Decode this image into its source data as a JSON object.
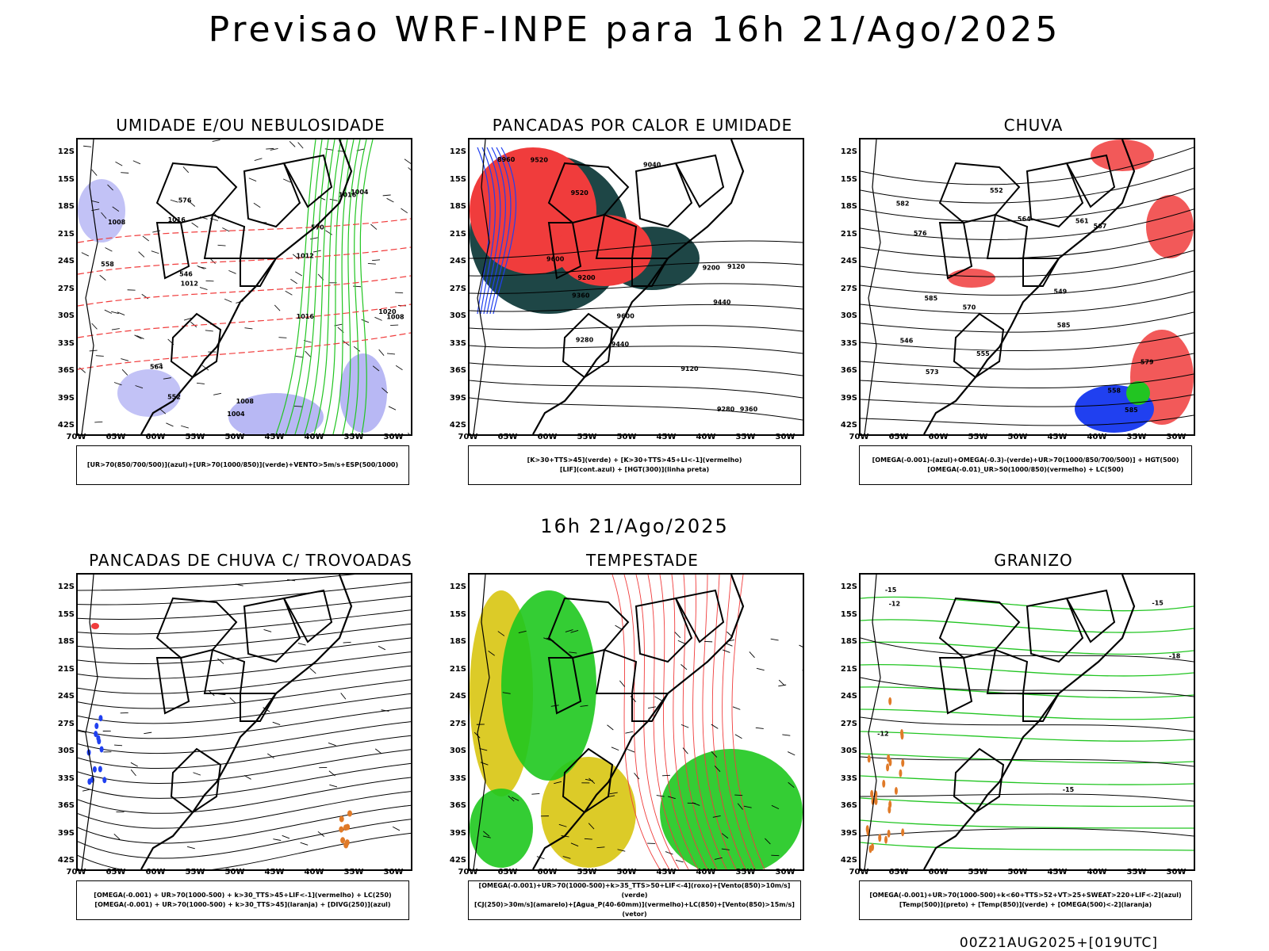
{
  "header": {
    "title": "Previsao WRF-INPE  para 16h 21/Ago/2025",
    "mid_title": "16h 21/Ago/2025",
    "footer_stamp": "00Z21AUG2025+[019UTC]"
  },
  "axes": {
    "lat_labels": [
      "12S",
      "15S",
      "18S",
      "21S",
      "24S",
      "27S",
      "30S",
      "33S",
      "36S",
      "39S",
      "42S"
    ],
    "lon_labels": [
      "70W",
      "65W",
      "60W",
      "55W",
      "50W",
      "45W",
      "40W",
      "35W",
      "30W"
    ]
  },
  "colors": {
    "humidity_blue": "#9a9af0",
    "wind_green": "#22c522",
    "red": "#f03c3c",
    "dark_teal": "#1e4646",
    "storm_yellow": "#dccb28",
    "storm_green": "#1ec81e",
    "hail_orange": "#e07a28",
    "blue": "#2040f0"
  },
  "panels": [
    {
      "title": "UMIDADE E/OU NEBULOSIDADE",
      "legend": [
        "[UR>70(850/700/500)](azul)+[UR>70(1000/850)](verde)+VENTO>5m/s+ESP(500/1000)"
      ],
      "contour_labels": [
        "1008",
        "1016",
        "1012",
        "1008",
        "1016",
        "1004",
        "1016",
        "1012",
        "1004",
        "1008",
        "1020",
        "576",
        "570",
        "564",
        "558",
        "552",
        "546"
      ]
    },
    {
      "title": "PANCADAS POR CALOR E UMIDADE",
      "legend": [
        "[K>30+TTS>45](verde) + [K>30+TTS>45+LI<-1](vermelho)",
        "[LIF](cont.azul) + [HGT(300)](linha preta)"
      ],
      "contour_labels": [
        "9600",
        "9600",
        "9520",
        "9440",
        "9360",
        "9520",
        "9440",
        "9360",
        "9280",
        "9200",
        "9120",
        "9040",
        "8960",
        "9280",
        "9200",
        "9120"
      ]
    },
    {
      "title": "CHUVA",
      "legend": [
        "[OMEGA(-0.001)-(azul)+OMEGA(-0.3)-(verde)+UR>70(1000/850/700/500)] + HGT(500)",
        "[OMEGA(-0.01)_UR>50(1000/850)(vermelho) + LC(500)"
      ],
      "contour_labels": [
        "585",
        "585",
        "585",
        "582",
        "579",
        "576",
        "573",
        "570",
        "567",
        "564",
        "561",
        "558",
        "555",
        "552",
        "549",
        "546"
      ]
    },
    {
      "title": "PANCADAS DE CHUVA C/ TROVOADAS",
      "legend": [
        "[OMEGA(-0.001) + UR>70(1000-500) + k>30_TTS>45+LIF<-1](vermelho) + LC(250)",
        "[OMEGA(-0.001) + UR>70(1000-500) + k>30_TTS>45](laranja) + [DIVG(250)](azul)"
      ]
    },
    {
      "title": "TEMPESTADE",
      "legend": [
        "[OMEGA(-0.001)+UR>70(1000-500)+k>35_TTS>50+LIF<-4](roxo)+[Vento(850)>10m/s](verde)",
        "[CJ(250)>30m/s](amarelo)+[Agua_P(40-60mm)](vermelho)+LC(850)+[Vento(850)>15m/s](vetor)"
      ]
    },
    {
      "title": "GRANIZO",
      "legend": [
        "[OMEGA(-0.001)+UR>70(1000-500)+k<60+TTS>52+VT>25+SWEAT>220+LIF<-2](azul)",
        "[Temp(500)](preto) + [Temp(850)](verde) + [OMEGA(500)<-2](laranja)"
      ],
      "contour_labels": [
        "-12",
        "-15",
        "-12",
        "-15",
        "-18",
        "-15"
      ]
    }
  ]
}
